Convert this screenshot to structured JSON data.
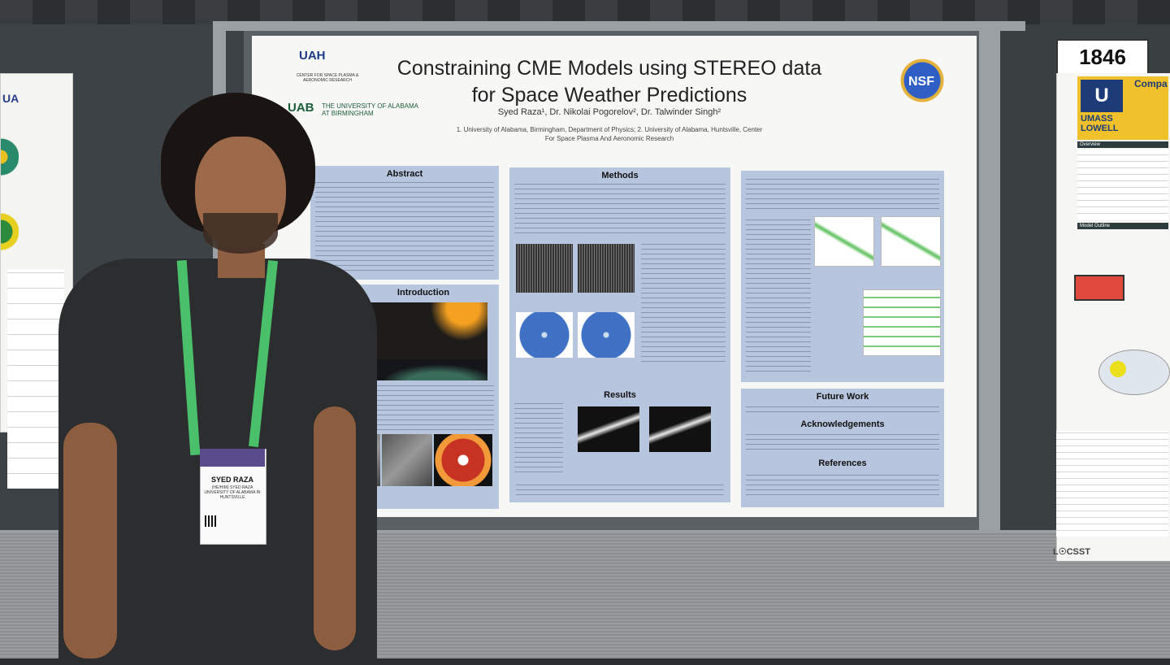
{
  "poster": {
    "title_line1": "Constraining CME Models using STEREO data",
    "title_line2": "for Space Weather Predictions",
    "authors": "Syed Raza¹, Dr. Nikolai Pogorelov², Dr. Talwinder Singh²",
    "affiliations": "1. University of Alabama, Birmingham, Department of Physics; 2. University of Alabama, Huntsville, Center For Space Plasma And Aeronomic Research",
    "logo_uah": "UAH",
    "logo_uah_sub": "CENTER FOR SPACE PLASMA & AERONOMIC RESEARCH",
    "logo_uab": "UAB",
    "logo_uab_sub": "THE UNIVERSITY OF ALABAMA AT BIRMINGHAM",
    "logo_nsf": "NSF",
    "sections": {
      "abstract": "Abstract",
      "introduction": "Introduction",
      "methods": "Methods",
      "results": "Results",
      "future_work": "Future Work",
      "acknowledgements": "Acknowledgements",
      "references": "References"
    }
  },
  "booth_number": "1846",
  "right_poster": {
    "logo": "UMASS LOWELL",
    "logo_mark": "U",
    "title_fragment": "Compa",
    "overview": "Overview",
    "model_outline": "Model Outline",
    "footer_logo": "L☉CSST"
  },
  "left_poster": {
    "logo": "UA"
  },
  "badge": {
    "name": "SYED RAZA",
    "sub": "(HE/HIM) SYED RAZA UNIVERSITY OF ALABAMA IN HUNTSVILLE"
  },
  "colors": {
    "panel": "#b8c5de",
    "lanyard": "#4ac06a",
    "poster_bg": "#f7f7f5"
  }
}
